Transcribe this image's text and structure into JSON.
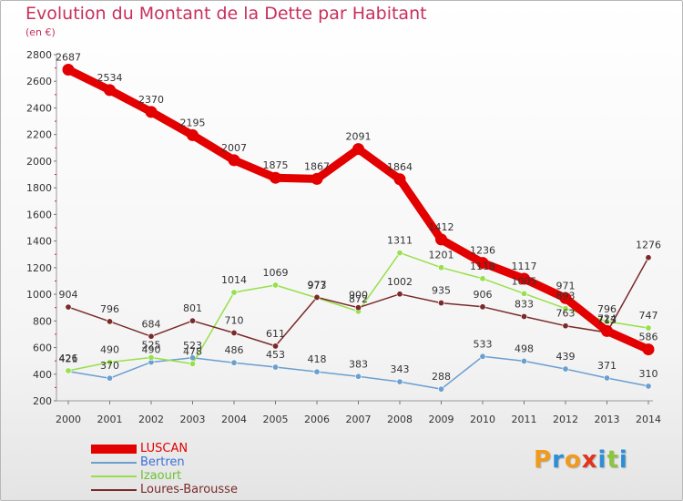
{
  "chart_data": {
    "type": "line",
    "title": "Evolution du Montant de la Dette par Habitant",
    "subtitle": "(en €)",
    "x": [
      "2000",
      "2001",
      "2002",
      "2003",
      "2004",
      "2005",
      "2006",
      "2007",
      "2008",
      "2009",
      "2010",
      "2011",
      "2012",
      "2013",
      "2014"
    ],
    "ylim": [
      200,
      2800
    ],
    "yticks": [
      200,
      400,
      600,
      800,
      1000,
      1200,
      1400,
      1600,
      1800,
      2000,
      2200,
      2400,
      2600,
      2800
    ],
    "grid": false,
    "legend_position": "bottom-left",
    "series": [
      {
        "name": "LUSCAN",
        "color": "#e30000",
        "emphasized": true,
        "values": [
          2687,
          2534,
          2370,
          2195,
          2007,
          1875,
          1867,
          2091,
          1864,
          1412,
          1236,
          1117,
          971,
          724,
          586
        ]
      },
      {
        "name": "Bertren",
        "color": "#6a9fd0",
        "values": [
          421,
          370,
          490,
          523,
          486,
          453,
          418,
          383,
          343,
          288,
          533,
          498,
          439,
          371,
          310
        ]
      },
      {
        "name": "Izaourt",
        "color": "#96e04a",
        "values": [
          426,
          490,
          525,
          478,
          1014,
          1069,
          973,
          872,
          1311,
          1201,
          1118,
          1005,
          893,
          796,
          747
        ]
      },
      {
        "name": "Loures-Barousse",
        "color": "#7a2a2a",
        "values": [
          904,
          796,
          684,
          801,
          710,
          611,
          977,
          900,
          1002,
          935,
          906,
          833,
          763,
          713,
          1276
        ]
      }
    ]
  },
  "logo": {
    "letters": [
      "P",
      "r",
      "o",
      "x",
      "i",
      "t",
      "i"
    ],
    "colors": [
      "#f29a1b",
      "#2c8fd6",
      "#f29a1b",
      "#e0341e",
      "#2c8fd6",
      "#8cc63e",
      "#2c8fd6"
    ]
  }
}
